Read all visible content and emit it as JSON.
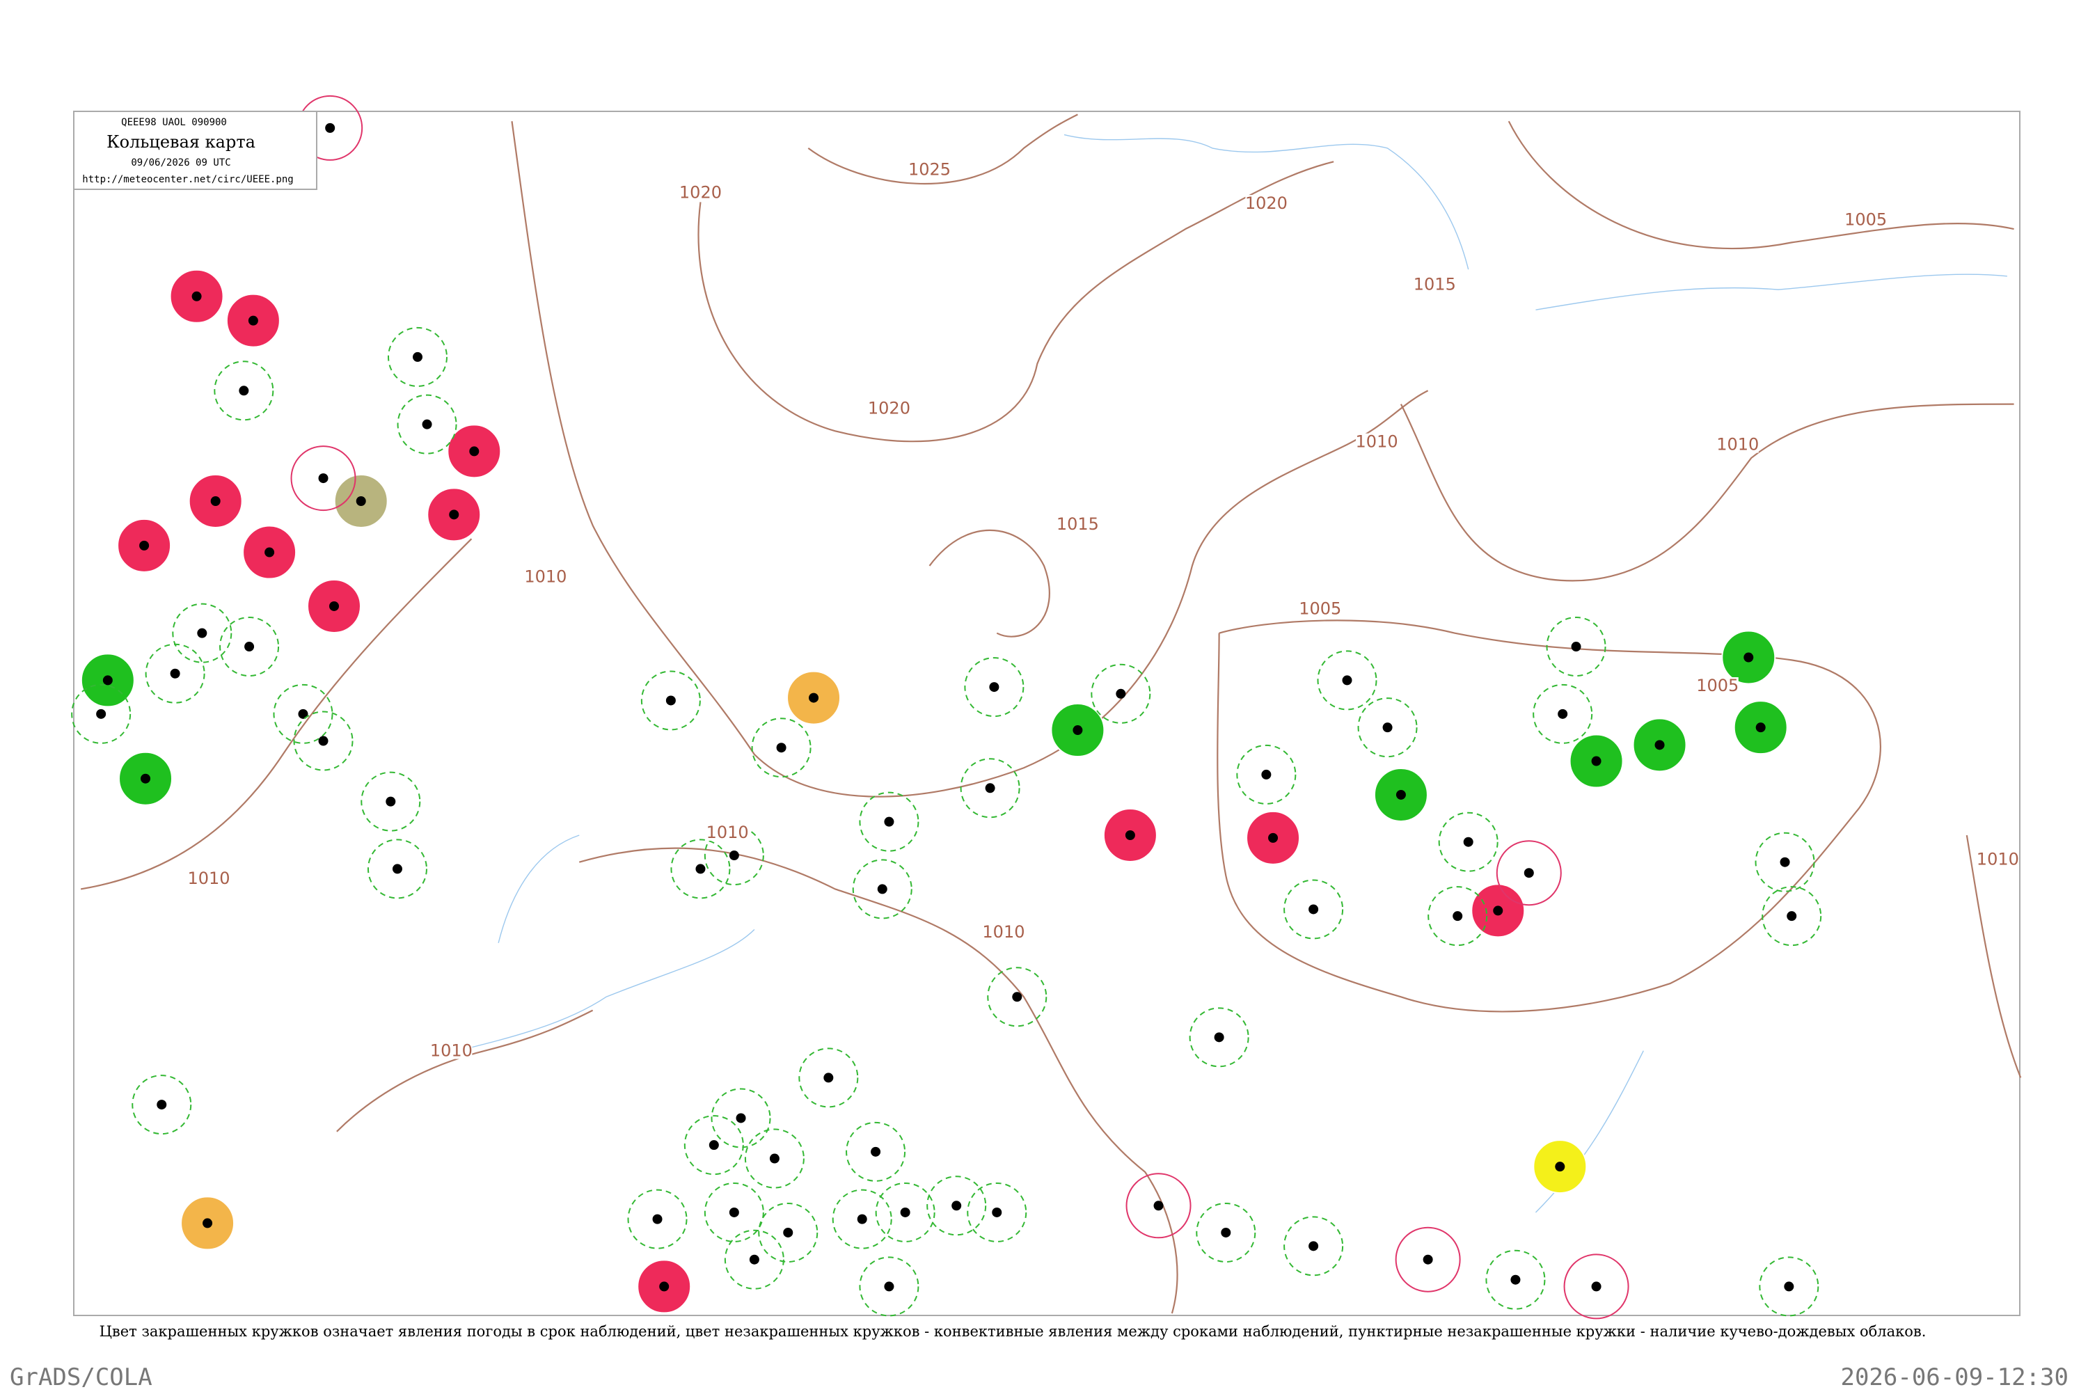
{
  "header": {
    "code": "QEEE98  UAOL  090900",
    "title": "Кольцевая карта",
    "date": "09/06/2026 09 UTC",
    "url": "http://meteocenter.net/circ/UEEE.png"
  },
  "isobars": [
    {
      "label": "1020"
    },
    {
      "label": "1025"
    },
    {
      "label": "1020"
    },
    {
      "label": "1015"
    },
    {
      "label": "1005"
    },
    {
      "label": "1020"
    },
    {
      "label": "1010"
    },
    {
      "label": "1010"
    },
    {
      "label": "1015"
    },
    {
      "label": "1010"
    },
    {
      "label": "1005"
    },
    {
      "label": "1005"
    },
    {
      "label": "1010"
    },
    {
      "label": "1010"
    },
    {
      "label": "1010"
    },
    {
      "label": "1010"
    },
    {
      "label": "1010"
    }
  ],
  "caption": "Цвет закрашенных кружков означает явления погоды в срок наблюдений, цвет незакрашенных кружков - конвективные явления между сроками наблюдений, пунктирные незакрашенные кружки - наличие кучево-дождевых облаков.",
  "footer": {
    "left": "GrADS/COLA",
    "right": "2026-06-09-12:30"
  }
}
